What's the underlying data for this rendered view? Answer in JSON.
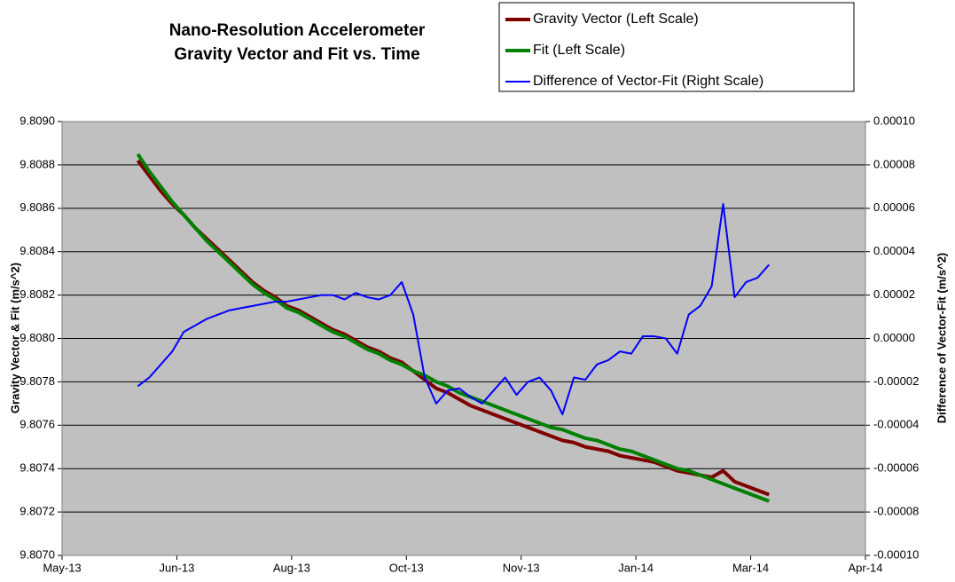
{
  "chart_data": {
    "type": "line",
    "title": "Nano-Resolution Accelerometer",
    "subtitle": "Gravity Vector and Fit vs. Time",
    "y_label": "Gravity Vector & Fit (m/s^2)",
    "y2_label": "Difference of Vector-Fit (m/s^2)",
    "x": [
      41437,
      41442,
      41447,
      41452,
      41457,
      41462,
      41467,
      41472,
      41477,
      41482,
      41487,
      41492,
      41497,
      41502,
      41507,
      41512,
      41517,
      41522,
      41527,
      41532,
      41537,
      41542,
      41547,
      41552,
      41557,
      41562,
      41567,
      41572,
      41577,
      41582,
      41587,
      41592,
      41597,
      41602,
      41607,
      41612,
      41617,
      41622,
      41627,
      41632,
      41637,
      41642,
      41647,
      41652,
      41657,
      41662,
      41667,
      41672,
      41677,
      41682,
      41687,
      41692,
      41697,
      41702,
      41707,
      41712
    ],
    "xlim": [
      41404,
      41754
    ],
    "xticks": [
      {
        "value": 41404,
        "label": "May-13"
      },
      {
        "value": 41454,
        "label": "Jun-13"
      },
      {
        "value": 41504,
        "label": "Aug-13"
      },
      {
        "value": 41554,
        "label": "Oct-13"
      },
      {
        "value": 41604,
        "label": "Nov-13"
      },
      {
        "value": 41654,
        "label": "Jan-14"
      },
      {
        "value": 41704,
        "label": "Mar-14"
      },
      {
        "value": 41754,
        "label": "Apr-14"
      }
    ],
    "ylim": [
      9.807,
      9.809
    ],
    "yticks": [
      {
        "value": 9.807,
        "label": "9.8070"
      },
      9.8072,
      9.8074,
      9.8076,
      9.8078,
      {
        "value": 9.808,
        "label": "9.8080"
      },
      9.8082,
      9.8084,
      9.8086,
      9.8088,
      {
        "value": 9.809,
        "label": "9.8090"
      }
    ],
    "y2lim": [
      -0.0001,
      0.0001
    ],
    "y2ticks": [
      {
        "value": -0.0001,
        "label": "-0.00010"
      },
      {
        "value": -8e-05,
        "label": "-0.00008"
      },
      {
        "value": -6e-05,
        "label": "-0.00006"
      },
      {
        "value": -4e-05,
        "label": "-0.00004"
      },
      {
        "value": -2e-05,
        "label": "-0.00002"
      },
      {
        "value": 0,
        "label": "0.00000"
      },
      {
        "value": 2e-05,
        "label": "0.00002"
      },
      {
        "value": 4e-05,
        "label": "0.00004"
      },
      {
        "value": 6e-05,
        "label": "0.00006"
      },
      {
        "value": 8e-05,
        "label": "0.00008"
      },
      {
        "value": 0.0001,
        "label": "0.00010"
      }
    ],
    "grid": true,
    "legend": "top-right",
    "series": [
      {
        "name": "Gravity Vector (Left Scale)",
        "color": "#800000",
        "values": [
          9.80882,
          9.80875,
          9.80868,
          9.80862,
          9.80857,
          9.80851,
          9.80846,
          9.80841,
          9.80836,
          9.80831,
          9.80826,
          9.80822,
          9.80819,
          9.80815,
          9.80813,
          9.8081,
          9.80807,
          9.80804,
          9.80802,
          9.80799,
          9.80796,
          9.80794,
          9.80791,
          9.80789,
          9.80785,
          9.80781,
          9.80777,
          9.80775,
          9.80772,
          9.80769,
          9.80767,
          9.80765,
          9.80763,
          9.80761,
          9.80759,
          9.80757,
          9.80755,
          9.80753,
          9.80752,
          9.8075,
          9.80749,
          9.80748,
          9.80746,
          9.80745,
          9.80744,
          9.80743,
          9.80741,
          9.80739,
          9.80738,
          9.80737,
          9.80736,
          9.80739,
          9.80734,
          9.80732,
          9.8073,
          9.80728
        ]
      },
      {
        "name": "Fit (Left Scale)",
        "color": "#008000",
        "values": [
          9.80885,
          9.80877,
          9.8087,
          9.80863,
          9.80857,
          9.80851,
          9.80845,
          9.8084,
          9.80835,
          9.8083,
          9.80825,
          9.80821,
          9.80818,
          9.80814,
          9.80812,
          9.80809,
          9.80806,
          9.80803,
          9.80801,
          9.80798,
          9.80795,
          9.80793,
          9.8079,
          9.80788,
          9.80785,
          9.80783,
          9.8078,
          9.80778,
          9.80775,
          9.80773,
          9.80771,
          9.80769,
          9.80767,
          9.80765,
          9.80763,
          9.80761,
          9.80759,
          9.80758,
          9.80756,
          9.80754,
          9.80753,
          9.80751,
          9.80749,
          9.80748,
          9.80746,
          9.80744,
          9.80742,
          9.8074,
          9.80739,
          9.80737,
          9.80735,
          9.80733,
          9.80731,
          9.80729,
          9.80727,
          9.80725
        ]
      },
      {
        "name": "Difference of Vector-Fit (Right Scale)",
        "color": "#0000FF",
        "axis": "y2",
        "values": [
          -2.2e-05,
          -1.8e-05,
          -1.2e-05,
          -6e-06,
          3e-06,
          6e-06,
          9e-06,
          1.1e-05,
          1.3e-05,
          1.4e-05,
          1.5e-05,
          1.6e-05,
          1.7e-05,
          1.7e-05,
          1.8e-05,
          1.9e-05,
          2e-05,
          2e-05,
          1.8e-05,
          2.1e-05,
          1.9e-05,
          1.8e-05,
          2e-05,
          2.6e-05,
          1.1e-05,
          -1.8e-05,
          -3e-05,
          -2.4e-05,
          -2.3e-05,
          -2.7e-05,
          -3e-05,
          -2.4e-05,
          -1.8e-05,
          -2.6e-05,
          -2e-05,
          -1.8e-05,
          -2.4e-05,
          -3.5e-05,
          -1.8e-05,
          -1.9e-05,
          -1.2e-05,
          -1e-05,
          -6e-06,
          -7e-06,
          1e-06,
          1e-06,
          0,
          -7e-06,
          1.1e-05,
          1.5e-05,
          2.4e-05,
          6.2e-05,
          1.9e-05,
          2.6e-05,
          2.8e-05,
          3.4e-05
        ]
      }
    ]
  }
}
